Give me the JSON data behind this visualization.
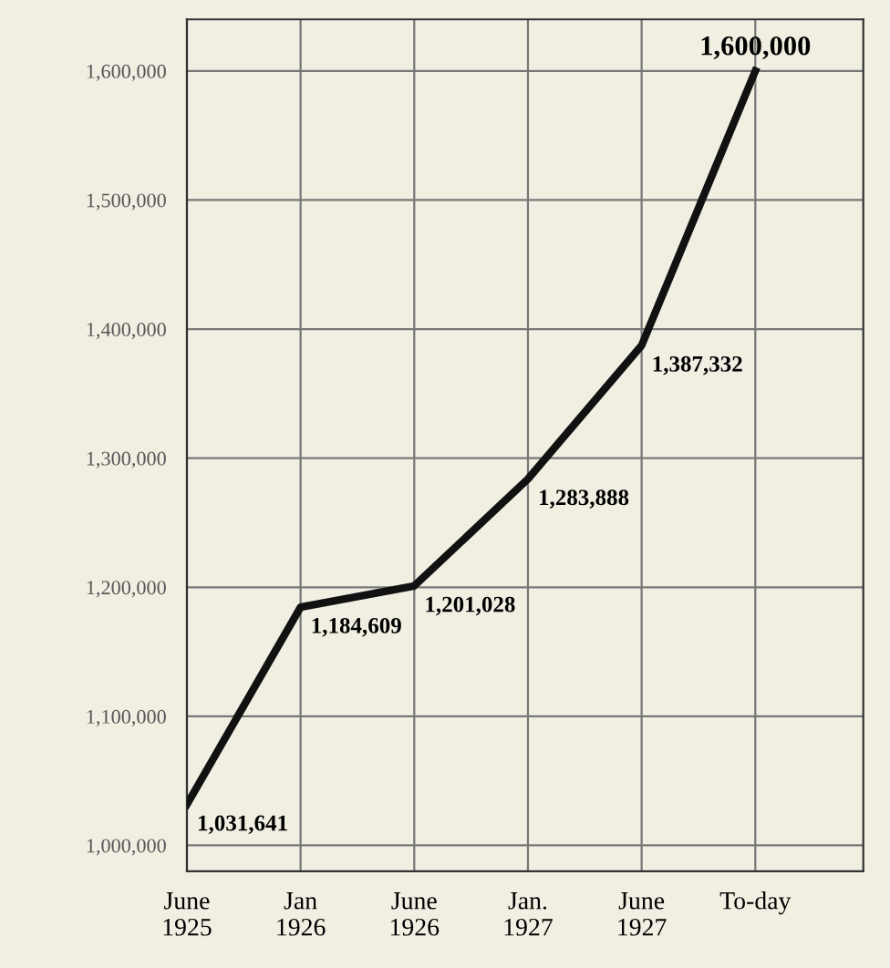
{
  "chart_data": {
    "type": "line",
    "categories": [
      "June\n1925",
      "Jan\n1926",
      "June\n1926",
      "Jan.\n1927",
      "June\n1927",
      "To-day"
    ],
    "series": [
      {
        "color": "#111111",
        "values": [
          1031641,
          1184609,
          1201028,
          1283888,
          1387332,
          1600000
        ]
      }
    ],
    "value_labels": [
      "1,031,641",
      "1,184,609",
      "1,201,028",
      "1,283,888",
      "1,387,332",
      "1,600,000"
    ],
    "ylim": [
      980000,
      1640000
    ],
    "yticks": [
      {
        "value": 1000000,
        "label": "1,000,000"
      },
      {
        "value": 1100000,
        "label": "1,100,000"
      },
      {
        "value": 1200000,
        "label": "1,200,000"
      },
      {
        "value": 1300000,
        "label": "1,300,000"
      },
      {
        "value": 1400000,
        "label": "1,400,000"
      },
      {
        "value": 1500000,
        "label": "1,500,000"
      },
      {
        "value": 1600000,
        "label": "1,600,000"
      }
    ],
    "grid": true,
    "marker": "none",
    "line_style": "solid"
  }
}
